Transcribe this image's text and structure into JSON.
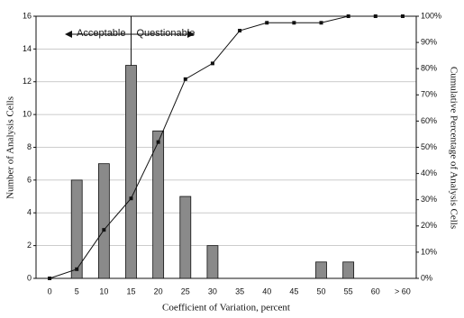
{
  "chart_data": {
    "type": "bar_line",
    "x_label": "Coefficient of Variation, percent",
    "y_label": "Number of Analysis Cells",
    "y2_label": "Cumulative Percentage of Analysis Cells",
    "categories": [
      "0",
      "5",
      "10",
      "15",
      "20",
      "25",
      "30",
      "35",
      "40",
      "45",
      "50",
      "55",
      "60",
      "> 60"
    ],
    "series": [
      {
        "type": "bar",
        "color": "#8a8a8a",
        "values": [
          0,
          6,
          7,
          13,
          9,
          5,
          2,
          0,
          0,
          0,
          1,
          1,
          0,
          0
        ]
      },
      {
        "type": "line",
        "axis": "y2",
        "color": "#111111",
        "values": [
          0,
          3.5,
          18.5,
          30.5,
          52,
          76,
          82,
          94.5,
          97.5,
          97.5,
          97.5,
          100,
          100,
          100
        ]
      }
    ],
    "ylim": [
      0,
      16
    ],
    "yticks": [
      0,
      2,
      4,
      6,
      8,
      10,
      12,
      14,
      16
    ],
    "y2lim": [
      0,
      100
    ],
    "y2ticks": [
      {
        "value": 0,
        "label": "0%"
      },
      {
        "value": 10,
        "label": "10%"
      },
      {
        "value": 20,
        "label": "20%"
      },
      {
        "value": 30,
        "label": "30%"
      },
      {
        "value": 40,
        "label": "40%"
      },
      {
        "value": 50,
        "label": "50%"
      },
      {
        "value": 60,
        "label": "60%"
      },
      {
        "value": 70,
        "label": "70%"
      },
      {
        "value": 80,
        "label": "80%"
      },
      {
        "value": 90,
        "label": "90%"
      },
      {
        "value": 100,
        "label": "100%"
      }
    ],
    "grid": true,
    "annotations": [
      {
        "text": "Acceptable"
      },
      {
        "text": "Questionable"
      }
    ]
  }
}
